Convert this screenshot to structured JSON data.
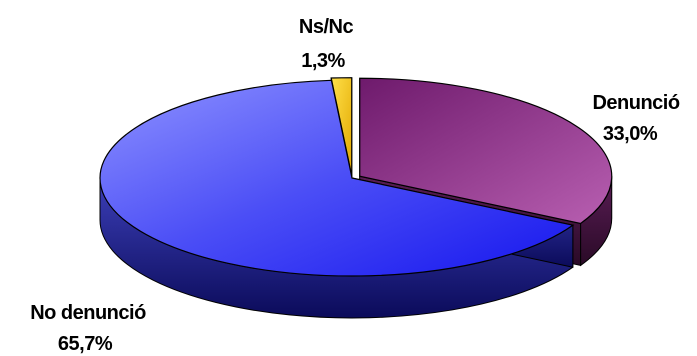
{
  "chart_data": {
    "type": "pie",
    "style": "3d-exploded",
    "categories": [
      "Denunció",
      "No denunció",
      "Ns/Nc"
    ],
    "values": [
      33.0,
      65.7,
      1.3
    ],
    "value_labels": [
      "33,0%",
      "65,7%",
      "1,3%"
    ],
    "unit": "%",
    "colors": {
      "Denunció": "#8a2f86",
      "No denunció": "#3b3cf2",
      "Ns/Nc": "#f5c400"
    },
    "legend": "none",
    "grid": false
  }
}
